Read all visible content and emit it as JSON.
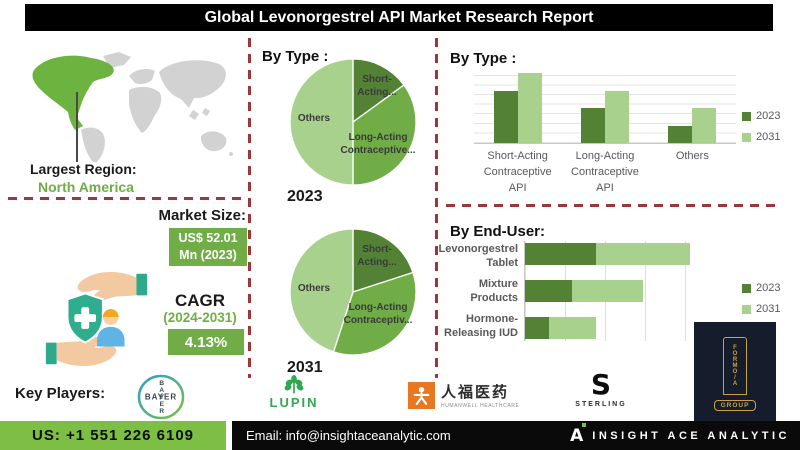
{
  "title": "Global Levonorgestrel API Market Research Report",
  "region": {
    "label": "Largest Region:",
    "value": "North America",
    "map_gray": "#D2D2D2",
    "map_highlight": "#6CB33F"
  },
  "pie_section": {
    "heading": "By Type :"
  },
  "market": {
    "size_label": "Market Size:",
    "size_value": "US$ 52.01\nMn (2023)",
    "cagr_label": "CAGR",
    "cagr_period": "(2024-2031)",
    "cagr_value": "4.13%",
    "accent_green": "#70AD47"
  },
  "key_players": {
    "label": "Key Players:",
    "bayer": {
      "name": "Bayer",
      "text": "BAYER"
    },
    "lupin": {
      "name": "Lupin",
      "text": "LUPIN"
    },
    "humanwell": {
      "name": "Humanwell Healthcare",
      "cn_text": "人福医药",
      "sub_text": "HUMANWELL HEALTHCARE"
    },
    "sterling": {
      "name": "Sterling",
      "letter": "S",
      "sub_text": "STERLING"
    },
    "formosa": {
      "name": "Formosa Group",
      "vertical_text": "FORMO/A",
      "sub_text": "GROUP"
    }
  },
  "footer": {
    "phone": "US: +1 551 226 6109",
    "email": "Email: info@insightaceanalytic.com",
    "brand": "INSIGHT ACE ANALYTIC",
    "brand_mark": "A"
  },
  "chart_data": [
    {
      "type": "pie",
      "year": "2023",
      "title": "By Type :",
      "slices": [
        {
          "name": "Short-Acting Contraceptive API",
          "label": "Short-\nActing...",
          "value": 15,
          "color": "#548235"
        },
        {
          "name": "Long-Acting Contraceptive API",
          "label": "Long-Acting\nContraceptive...",
          "value": 35,
          "color": "#70AD47"
        },
        {
          "name": "Others",
          "label": "Others",
          "value": 50,
          "color": "#A9D18E"
        }
      ]
    },
    {
      "type": "pie",
      "year": "2031",
      "title": "By Type :",
      "slices": [
        {
          "name": "Short-Acting Contraceptive API",
          "label": "Short-\nActing...",
          "value": 20,
          "color": "#548235"
        },
        {
          "name": "Long-Acting Contraceptive API",
          "label": "Long-Acting\nContraceptiv...",
          "value": 35,
          "color": "#70AD47"
        },
        {
          "name": "Others",
          "label": "Others",
          "value": 45,
          "color": "#A9D18E"
        }
      ]
    },
    {
      "type": "bar",
      "title": "By Type :",
      "categories": [
        "Short-Acting\nContraceptive API",
        "Long-Acting\nContraceptive API",
        "Others"
      ],
      "series": [
        {
          "name": "2023",
          "color": "#548235",
          "values": [
            75,
            50,
            25
          ]
        },
        {
          "name": "2031",
          "color": "#A9D18E",
          "values": [
            100,
            75,
            50
          ]
        }
      ],
      "ylim": [
        0,
        110
      ],
      "grid": true,
      "legend_position": "right"
    },
    {
      "type": "bar",
      "orientation": "horizontal-stacked",
      "title": "By End-User:",
      "categories": [
        "Levonorgestrel\nTablet",
        "Mixture Products",
        "Hormone-\nReleasing IUD"
      ],
      "series": [
        {
          "name": "2023",
          "color": "#548235",
          "values": [
            60,
            40,
            20
          ]
        },
        {
          "name": "2031",
          "color": "#A9D18E",
          "values": [
            80,
            60,
            40
          ]
        }
      ],
      "xlim": [
        0,
        150
      ],
      "grid": true,
      "legend_position": "right"
    }
  ]
}
